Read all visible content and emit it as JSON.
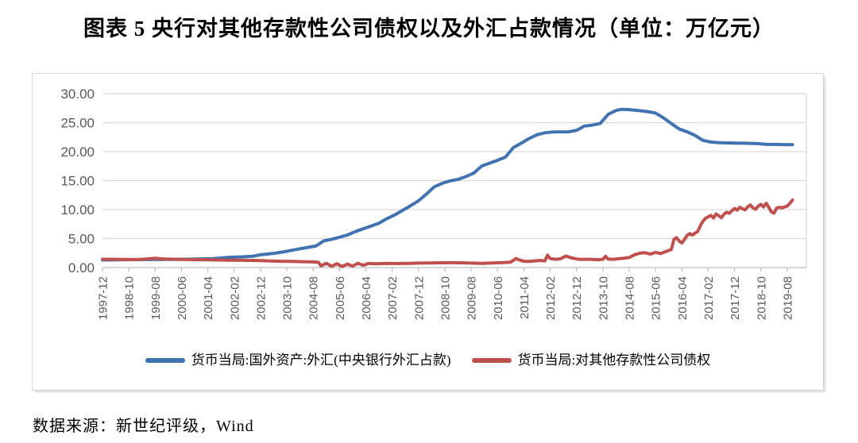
{
  "title": "图表 5  央行对其他存款性公司债权以及外汇占款情况（单位：万亿元）",
  "source_note": "数据来源：新世纪评级，Wind",
  "colors": {
    "blue_series": "#4173b3",
    "red_series": "#c0504d",
    "gridline": "#d9d9d9",
    "axis_line": "#bfbfbf",
    "tick_label": "#595959"
  },
  "chart_data": {
    "type": "line",
    "title": "央行对其他存款性公司债权以及外汇占款情况",
    "unit": "万亿元",
    "ylabel": "",
    "xlabel": "",
    "ylim": [
      0,
      30
    ],
    "grid": "horizontal",
    "legend_position": "bottom",
    "y_tick_values": [
      0,
      5,
      10,
      15,
      20,
      25,
      30
    ],
    "y_tick_labels": [
      "0.00",
      "5.00",
      "10.00",
      "15.00",
      "20.00",
      "25.00",
      "30.00"
    ],
    "x_tick_interval_months": 10,
    "x_tick_labels": [
      "1997-12",
      "1998-10",
      "1999-08",
      "2000-06",
      "2001-04",
      "2002-02",
      "2002-12",
      "2003-10",
      "2004-08",
      "2005-06",
      "2006-04",
      "2007-02",
      "2007-12",
      "2008-10",
      "2009-08",
      "2010-06",
      "2011-04",
      "2012-02",
      "2012-12",
      "2013-10",
      "2014-08",
      "2015-06",
      "2016-04",
      "2017-02",
      "2017-12",
      "2018-10",
      "2019-08"
    ],
    "x_unit": "months since 1997-12",
    "series": [
      {
        "name": "货币当局:国外资产:外汇(中央银行外汇占款)",
        "color": "#4173b3",
        "points": [
          [
            0,
            1.3
          ],
          [
            6,
            1.33
          ],
          [
            12,
            1.37
          ],
          [
            18,
            1.39
          ],
          [
            24,
            1.41
          ],
          [
            30,
            1.43
          ],
          [
            36,
            1.47
          ],
          [
            42,
            1.55
          ],
          [
            45,
            1.64
          ],
          [
            48,
            1.77
          ],
          [
            51,
            1.81
          ],
          [
            54,
            1.86
          ],
          [
            57,
            1.95
          ],
          [
            60,
            2.21
          ],
          [
            63,
            2.34
          ],
          [
            66,
            2.51
          ],
          [
            69,
            2.72
          ],
          [
            72,
            2.98
          ],
          [
            75,
            3.24
          ],
          [
            78,
            3.48
          ],
          [
            81,
            3.71
          ],
          [
            84,
            4.59
          ],
          [
            87,
            4.88
          ],
          [
            90,
            5.23
          ],
          [
            93,
            5.62
          ],
          [
            96,
            6.21
          ],
          [
            99,
            6.69
          ],
          [
            102,
            7.17
          ],
          [
            105,
            7.66
          ],
          [
            108,
            8.44
          ],
          [
            111,
            9.1
          ],
          [
            114,
            9.87
          ],
          [
            117,
            10.67
          ],
          [
            120,
            11.52
          ],
          [
            123,
            12.67
          ],
          [
            126,
            13.93
          ],
          [
            129,
            14.54
          ],
          [
            132,
            14.96
          ],
          [
            135,
            15.2
          ],
          [
            138,
            15.7
          ],
          [
            141,
            16.3
          ],
          [
            144,
            17.52
          ],
          [
            147,
            18.01
          ],
          [
            150,
            18.51
          ],
          [
            153,
            19.06
          ],
          [
            156,
            20.68
          ],
          [
            159,
            21.45
          ],
          [
            162,
            22.26
          ],
          [
            165,
            22.92
          ],
          [
            168,
            23.24
          ],
          [
            171,
            23.39
          ],
          [
            174,
            23.41
          ],
          [
            177,
            23.42
          ],
          [
            180,
            23.67
          ],
          [
            183,
            24.41
          ],
          [
            186,
            24.58
          ],
          [
            189,
            24.85
          ],
          [
            192,
            26.43
          ],
          [
            195,
            27.1
          ],
          [
            197,
            27.3
          ],
          [
            200,
            27.25
          ],
          [
            204,
            27.07
          ],
          [
            207,
            26.9
          ],
          [
            210,
            26.66
          ],
          [
            213,
            25.84
          ],
          [
            216,
            24.85
          ],
          [
            219,
            23.9
          ],
          [
            222,
            23.43
          ],
          [
            225,
            22.79
          ],
          [
            228,
            21.94
          ],
          [
            231,
            21.66
          ],
          [
            234,
            21.54
          ],
          [
            237,
            21.51
          ],
          [
            240,
            21.48
          ],
          [
            243,
            21.45
          ],
          [
            246,
            21.42
          ],
          [
            249,
            21.39
          ],
          [
            252,
            21.25
          ],
          [
            255,
            21.24
          ],
          [
            258,
            21.22
          ],
          [
            262,
            21.2
          ]
        ]
      },
      {
        "name": "货币当局:对其他存款性公司债权",
        "color": "#c0504d",
        "points": [
          [
            0,
            1.44
          ],
          [
            4,
            1.42
          ],
          [
            8,
            1.4
          ],
          [
            12,
            1.37
          ],
          [
            15,
            1.42
          ],
          [
            18,
            1.52
          ],
          [
            20,
            1.62
          ],
          [
            22,
            1.52
          ],
          [
            24,
            1.46
          ],
          [
            28,
            1.42
          ],
          [
            32,
            1.38
          ],
          [
            36,
            1.36
          ],
          [
            40,
            1.33
          ],
          [
            44,
            1.3
          ],
          [
            48,
            1.28
          ],
          [
            52,
            1.26
          ],
          [
            56,
            1.23
          ],
          [
            60,
            1.2
          ],
          [
            64,
            1.14
          ],
          [
            68,
            1.08
          ],
          [
            72,
            1.05
          ],
          [
            76,
            1.02
          ],
          [
            80,
            0.97
          ],
          [
            82,
            0.9
          ],
          [
            83,
            0.3
          ],
          [
            85,
            0.72
          ],
          [
            87,
            0.22
          ],
          [
            89,
            0.66
          ],
          [
            91,
            0.18
          ],
          [
            93,
            0.6
          ],
          [
            95,
            0.26
          ],
          [
            97,
            0.74
          ],
          [
            99,
            0.38
          ],
          [
            101,
            0.7
          ],
          [
            104,
            0.66
          ],
          [
            108,
            0.71
          ],
          [
            112,
            0.69
          ],
          [
            116,
            0.72
          ],
          [
            120,
            0.77
          ],
          [
            124,
            0.8
          ],
          [
            128,
            0.82
          ],
          [
            132,
            0.84
          ],
          [
            136,
            0.82
          ],
          [
            140,
            0.77
          ],
          [
            144,
            0.72
          ],
          [
            148,
            0.78
          ],
          [
            152,
            0.86
          ],
          [
            155,
            0.93
          ],
          [
            157,
            1.55
          ],
          [
            158,
            1.35
          ],
          [
            160,
            1.08
          ],
          [
            162,
            1.05
          ],
          [
            164,
            1.15
          ],
          [
            166,
            1.22
          ],
          [
            168,
            1.15
          ],
          [
            169,
            2.15
          ],
          [
            170,
            1.55
          ],
          [
            172,
            1.42
          ],
          [
            174,
            1.52
          ],
          [
            176,
            1.98
          ],
          [
            178,
            1.68
          ],
          [
            180,
            1.48
          ],
          [
            182,
            1.4
          ],
          [
            184,
            1.44
          ],
          [
            186,
            1.4
          ],
          [
            188,
            1.36
          ],
          [
            190,
            1.42
          ],
          [
            191,
            1.95
          ],
          [
            192,
            1.45
          ],
          [
            194,
            1.42
          ],
          [
            196,
            1.52
          ],
          [
            198,
            1.62
          ],
          [
            200,
            1.72
          ],
          [
            202,
            2.2
          ],
          [
            204,
            2.48
          ],
          [
            206,
            2.56
          ],
          [
            208,
            2.32
          ],
          [
            210,
            2.62
          ],
          [
            212,
            2.42
          ],
          [
            214,
            2.78
          ],
          [
            216,
            3.1
          ],
          [
            217,
            4.9
          ],
          [
            218,
            5.15
          ],
          [
            219,
            4.55
          ],
          [
            220,
            4.25
          ],
          [
            221,
            4.85
          ],
          [
            222,
            5.55
          ],
          [
            223,
            5.85
          ],
          [
            224,
            5.6
          ],
          [
            225,
            5.95
          ],
          [
            226,
            6.2
          ],
          [
            227,
            7.2
          ],
          [
            228,
            8.0
          ],
          [
            229,
            8.5
          ],
          [
            230,
            8.75
          ],
          [
            231,
            9.0
          ],
          [
            232,
            8.55
          ],
          [
            233,
            9.25
          ],
          [
            234,
            8.95
          ],
          [
            235,
            8.6
          ],
          [
            236,
            9.2
          ],
          [
            237,
            9.55
          ],
          [
            238,
            9.35
          ],
          [
            239,
            9.8
          ],
          [
            240,
            10.2
          ],
          [
            241,
            9.9
          ],
          [
            242,
            10.4
          ],
          [
            243,
            10.15
          ],
          [
            244,
            9.95
          ],
          [
            245,
            10.5
          ],
          [
            246,
            10.8
          ],
          [
            247,
            10.3
          ],
          [
            248,
            10.05
          ],
          [
            249,
            10.6
          ],
          [
            250,
            10.9
          ],
          [
            251,
            10.45
          ],
          [
            252,
            11.1
          ],
          [
            253,
            10.4
          ],
          [
            254,
            9.6
          ],
          [
            255,
            9.4
          ],
          [
            256,
            10.25
          ],
          [
            257,
            10.4
          ],
          [
            258,
            10.3
          ],
          [
            259,
            10.45
          ],
          [
            260,
            10.6
          ],
          [
            261,
            11.05
          ],
          [
            262,
            11.65
          ]
        ]
      }
    ]
  }
}
